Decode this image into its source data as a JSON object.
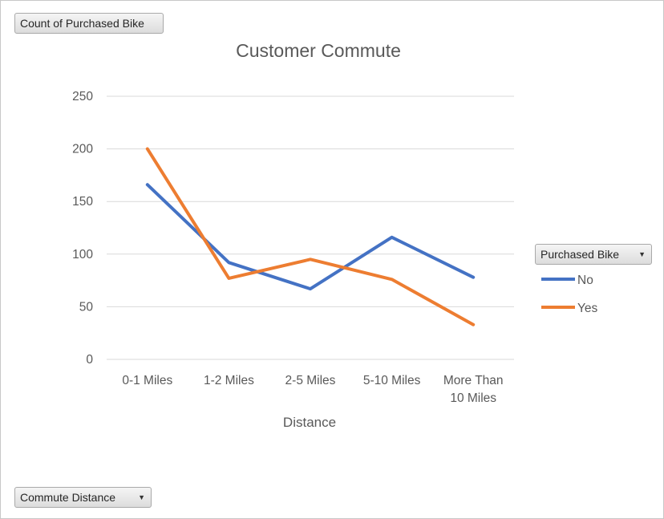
{
  "filter_buttons": {
    "values_field": "Count of Purchased Bike",
    "legend_field": "Purchased Bike",
    "axis_field": "Commute Distance"
  },
  "icons": {
    "dropdown": "chevron-down-icon"
  },
  "colors": {
    "No": "#4472c4",
    "Yes": "#ed7d31",
    "gridline": "#d9d9d9",
    "text": "#595959"
  },
  "chart_data": {
    "type": "line",
    "title": "Customer Commute",
    "xlabel": "Distance",
    "ylabel": "",
    "categories": [
      "0-1 Miles",
      "1-2 Miles",
      "2-5 Miles",
      "5-10 Miles",
      "More Than 10 Miles"
    ],
    "series": [
      {
        "name": "No",
        "values": [
          166,
          92,
          67,
          116,
          78
        ]
      },
      {
        "name": "Yes",
        "values": [
          200,
          77,
          95,
          76,
          33
        ]
      }
    ],
    "ylim": [
      0,
      250
    ],
    "yticks": [
      0,
      50,
      100,
      150,
      200,
      250
    ],
    "grid": true,
    "legend": "right"
  }
}
